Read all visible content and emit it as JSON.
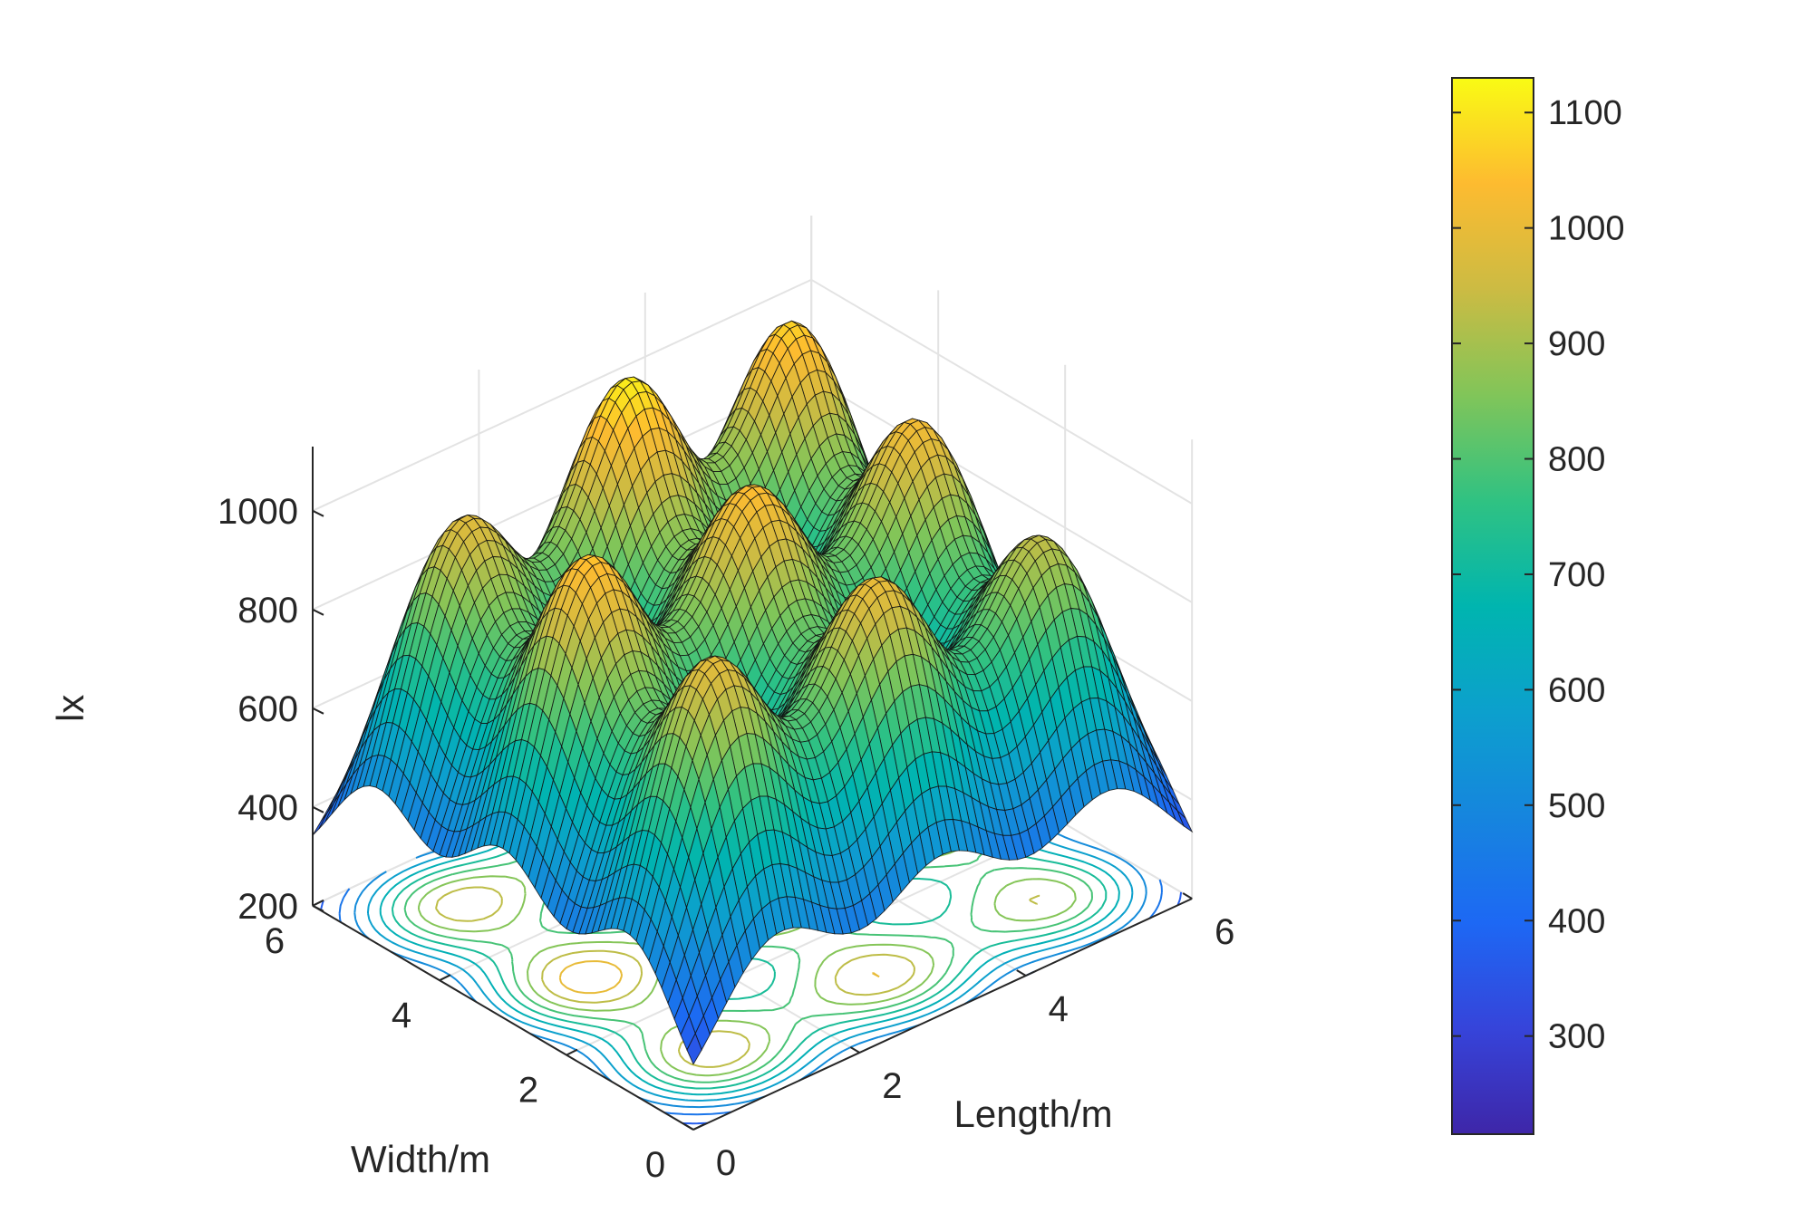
{
  "chart_data": {
    "type": "surface3d",
    "title": "",
    "xlabel": "Length/m",
    "ylabel": "Width/m",
    "zlabel": "lx",
    "xlim": [
      0,
      6
    ],
    "ylim": [
      0,
      6
    ],
    "zlim": [
      200,
      1130
    ],
    "xticks": [
      "0",
      "2",
      "4",
      "6"
    ],
    "yticks": [
      "0",
      "2",
      "4",
      "6"
    ],
    "zticks": [
      "200",
      "400",
      "600",
      "800",
      "1000"
    ],
    "grid": true,
    "contour_projection": true,
    "colormap": "parula",
    "colorbar": {
      "range": [
        215,
        1130
      ],
      "ticks": [
        "300",
        "400",
        "500",
        "600",
        "700",
        "800",
        "900",
        "1000",
        "1100"
      ],
      "placement": "right"
    },
    "grid_resolution": 60,
    "luminaires": [
      {
        "x": 1,
        "y": 1
      },
      {
        "x": 3,
        "y": 1
      },
      {
        "x": 5,
        "y": 1
      },
      {
        "x": 1,
        "y": 3
      },
      {
        "x": 3,
        "y": 3
      },
      {
        "x": 5,
        "y": 3
      },
      {
        "x": 1,
        "y": 5
      },
      {
        "x": 3,
        "y": 5
      },
      {
        "x": 5,
        "y": 5
      }
    ],
    "peak_values": [
      {
        "x": 1,
        "y": 1,
        "value": 990
      },
      {
        "x": 3,
        "y": 1,
        "value": 1000
      },
      {
        "x": 5,
        "y": 1,
        "value": 930
      },
      {
        "x": 1,
        "y": 3,
        "value": 1050
      },
      {
        "x": 3,
        "y": 3,
        "value": 1040
      },
      {
        "x": 5,
        "y": 3,
        "value": 1020
      },
      {
        "x": 1,
        "y": 5,
        "value": 980
      },
      {
        "x": 3,
        "y": 5,
        "value": 1110
      },
      {
        "x": 5,
        "y": 5,
        "value": 1070
      }
    ],
    "corner_min": 220,
    "edge_value": 240
  }
}
